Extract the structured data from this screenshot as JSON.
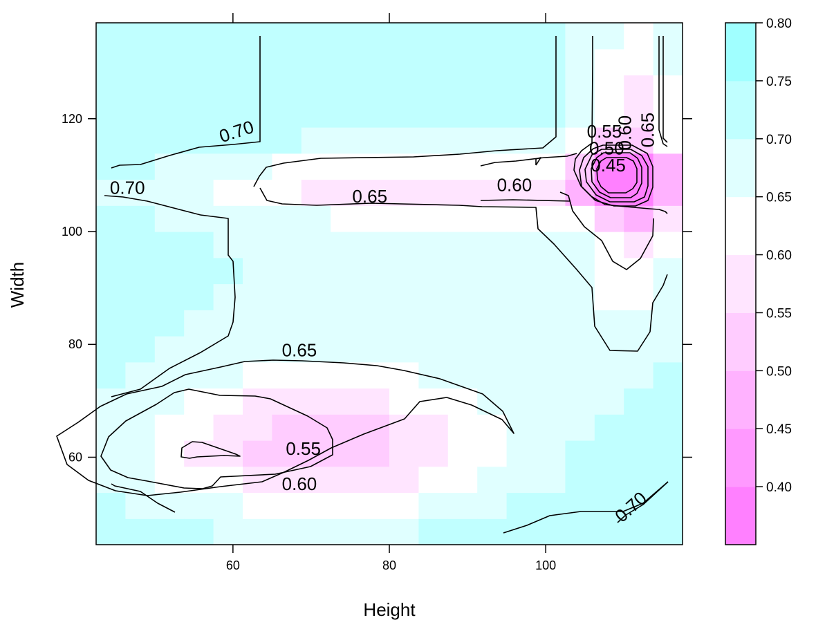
{
  "chart_data": {
    "type": "heatmap",
    "subtype": "levelplot-with-contours",
    "xlabel": "Height",
    "ylabel": "Width",
    "xlim": [
      42.5,
      117.5
    ],
    "ylim": [
      44.5,
      137
    ],
    "x_ticks": [
      60,
      80,
      100
    ],
    "y_ticks": [
      60,
      80,
      100,
      120
    ],
    "grid": false,
    "legend": "right colorbar",
    "colorbar": {
      "range": [
        0.35,
        0.8
      ],
      "breaks": [
        0.35,
        0.4,
        0.45,
        0.5,
        0.55,
        0.6,
        0.65,
        0.7,
        0.75,
        0.8
      ],
      "tick_labels": [
        "0.40",
        "0.45",
        "0.50",
        "0.55",
        "0.60",
        "0.65",
        "0.70",
        "0.75",
        "0.80"
      ],
      "colors": [
        "#FF80FF",
        "#FF99FF",
        "#FFB2FF",
        "#FFCCFF",
        "#FFE5FF",
        "#FFFFFF",
        "#E0FFFF",
        "#C0FFFF",
        "#A0FFFF",
        "#80FFFF"
      ]
    },
    "contour_labels": [
      {
        "text": "0.70",
        "x": 60.5,
        "y": 117.5,
        "angle": -18
      },
      {
        "text": "0.70",
        "x": 46.5,
        "y": 107.5,
        "angle": 0
      },
      {
        "text": "0.65",
        "x": 77.5,
        "y": 106,
        "angle": 0
      },
      {
        "text": "0.60",
        "x": 96,
        "y": 108,
        "angle": 0
      },
      {
        "text": "0.65",
        "x": 68.5,
        "y": 78.7,
        "angle": 0
      },
      {
        "text": "0.55",
        "x": 69,
        "y": 61.3,
        "angle": 0
      },
      {
        "text": "0.60",
        "x": 68.5,
        "y": 55,
        "angle": 0
      },
      {
        "text": "0.70",
        "x": 111,
        "y": 51,
        "angle": -42
      },
      {
        "text": "0.55",
        "x": 107.5,
        "y": 117.5,
        "angle": 0
      },
      {
        "text": "0.50",
        "x": 107.8,
        "y": 114.5,
        "angle": 0
      },
      {
        "text": "0.45",
        "x": 108,
        "y": 111.5,
        "angle": 0
      },
      {
        "text": "0.60",
        "x": 110.3,
        "y": 117.5,
        "angle": -90
      },
      {
        "text": "0.65",
        "x": 113.2,
        "y": 118,
        "angle": -90
      }
    ]
  }
}
